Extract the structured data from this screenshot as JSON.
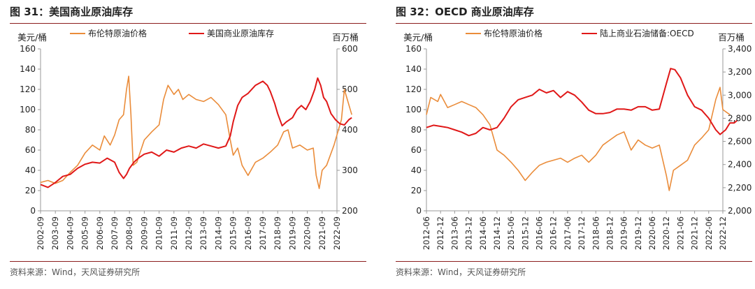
{
  "chart_data": [
    {
      "type": "line",
      "title": "图 31：美国商业原油库存",
      "source": "资料来源：Wind，天风证券研究所",
      "left_unit": "美元/桶",
      "right_unit": "百万桶",
      "ylim_left": [
        0,
        160
      ],
      "ylim_right": [
        200,
        600
      ],
      "yticks_left": [
        "0",
        "20",
        "40",
        "60",
        "80",
        "100",
        "120",
        "140",
        "160"
      ],
      "yticks_right": [
        "200",
        "300",
        "400",
        "500",
        "600"
      ],
      "categories": [
        "2002-09",
        "2003-09",
        "2004-09",
        "2005-09",
        "2006-09",
        "2007-09",
        "2008-09",
        "2009-09",
        "2010-09",
        "2011-09",
        "2012-09",
        "2013-09",
        "2014-09",
        "2015-09",
        "2016-09",
        "2017-09",
        "2018-09",
        "2019-09",
        "2020-09",
        "2021-09",
        "2022-09"
      ],
      "series": [
        {
          "name": "布伦特原油价格",
          "axis": "left",
          "color": "#ea8c3a",
          "values": [
            [
              0,
              28
            ],
            [
              0.5,
              30
            ],
            [
              1,
              27
            ],
            [
              1.5,
              30
            ],
            [
              2,
              38
            ],
            [
              2.5,
              45
            ],
            [
              3,
              57
            ],
            [
              3.5,
              65
            ],
            [
              4,
              60
            ],
            [
              4.3,
              74
            ],
            [
              4.7,
              65
            ],
            [
              5,
              75
            ],
            [
              5.3,
              90
            ],
            [
              5.6,
              95
            ],
            [
              5.8,
              120
            ],
            [
              5.95,
              133
            ],
            [
              6.1,
              95
            ],
            [
              6.25,
              45
            ],
            [
              6.5,
              48
            ],
            [
              7,
              70
            ],
            [
              7.5,
              78
            ],
            [
              8,
              85
            ],
            [
              8.3,
              110
            ],
            [
              8.6,
              124
            ],
            [
              9,
              115
            ],
            [
              9.3,
              120
            ],
            [
              9.6,
              110
            ],
            [
              10,
              115
            ],
            [
              10.5,
              110
            ],
            [
              11,
              108
            ],
            [
              11.5,
              112
            ],
            [
              12,
              105
            ],
            [
              12.5,
              95
            ],
            [
              12.8,
              70
            ],
            [
              13,
              55
            ],
            [
              13.3,
              62
            ],
            [
              13.6,
              45
            ],
            [
              14,
              35
            ],
            [
              14.5,
              48
            ],
            [
              15,
              52
            ],
            [
              15.5,
              58
            ],
            [
              16,
              65
            ],
            [
              16.4,
              78
            ],
            [
              16.7,
              80
            ],
            [
              17,
              62
            ],
            [
              17.5,
              65
            ],
            [
              18,
              60
            ],
            [
              18.4,
              62
            ],
            [
              18.6,
              35
            ],
            [
              18.8,
              22
            ],
            [
              19,
              40
            ],
            [
              19.3,
              45
            ],
            [
              19.8,
              65
            ],
            [
              20,
              75
            ],
            [
              20.3,
              90
            ],
            [
              20.5,
              120
            ],
            [
              20.7,
              110
            ],
            [
              21,
              95
            ]
          ]
        },
        {
          "name": "美国商业原油库存",
          "axis": "right",
          "color": "#e01818",
          "values": [
            [
              0,
              265
            ],
            [
              0.5,
              258
            ],
            [
              1,
              270
            ],
            [
              1.5,
              285
            ],
            [
              2,
              290
            ],
            [
              2.5,
              305
            ],
            [
              3,
              315
            ],
            [
              3.5,
              320
            ],
            [
              4,
              318
            ],
            [
              4.5,
              330
            ],
            [
              5,
              320
            ],
            [
              5.3,
              295
            ],
            [
              5.6,
              280
            ],
            [
              5.8,
              290
            ],
            [
              6,
              305
            ],
            [
              6.3,
              320
            ],
            [
              6.6,
              330
            ],
            [
              7,
              340
            ],
            [
              7.5,
              345
            ],
            [
              8,
              335
            ],
            [
              8.5,
              350
            ],
            [
              9,
              345
            ],
            [
              9.5,
              355
            ],
            [
              10,
              360
            ],
            [
              10.5,
              355
            ],
            [
              11,
              365
            ],
            [
              11.5,
              360
            ],
            [
              12,
              355
            ],
            [
              12.5,
              360
            ],
            [
              12.8,
              385
            ],
            [
              13,
              420
            ],
            [
              13.3,
              460
            ],
            [
              13.6,
              480
            ],
            [
              14,
              490
            ],
            [
              14.5,
              510
            ],
            [
              15,
              520
            ],
            [
              15.3,
              510
            ],
            [
              15.5,
              495
            ],
            [
              15.8,
              465
            ],
            [
              16,
              440
            ],
            [
              16.3,
              410
            ],
            [
              16.6,
              420
            ],
            [
              17,
              430
            ],
            [
              17.3,
              450
            ],
            [
              17.6,
              460
            ],
            [
              17.9,
              450
            ],
            [
              18.2,
              470
            ],
            [
              18.5,
              500
            ],
            [
              18.7,
              528
            ],
            [
              18.9,
              510
            ],
            [
              19.1,
              480
            ],
            [
              19.3,
              470
            ],
            [
              19.6,
              440
            ],
            [
              19.9,
              425
            ],
            [
              20.2,
              415
            ],
            [
              20.5,
              412
            ],
            [
              20.8,
              425
            ],
            [
              21,
              430
            ]
          ]
        }
      ]
    },
    {
      "type": "line",
      "title": "图 32：OECD 商业原油库存",
      "source": "资料来源：Wind，天风证券研究所",
      "left_unit": "美元/桶",
      "right_unit": "百万桶",
      "ylim_left": [
        0,
        160
      ],
      "ylim_right": [
        2000,
        3400
      ],
      "yticks_left": [
        "0",
        "20",
        "40",
        "60",
        "80",
        "100",
        "120",
        "140",
        "160"
      ],
      "yticks_right": [
        "2,000",
        "2,200",
        "2,400",
        "2,600",
        "2,800",
        "3,000",
        "3,200",
        "3,400"
      ],
      "categories": [
        "2012-06",
        "2012-12",
        "2013-06",
        "2013-12",
        "2014-06",
        "2014-12",
        "2015-06",
        "2015-12",
        "2016-06",
        "2016-12",
        "2017-06",
        "2017-12",
        "2018-06",
        "2018-12",
        "2019-06",
        "2019-12",
        "2020-06",
        "2020-12",
        "2021-06",
        "2021-12",
        "2022-06",
        "2022-12"
      ],
      "series": [
        {
          "name": "布伦特原油价格",
          "axis": "left",
          "color": "#ea8c3a",
          "values": [
            [
              0,
              95
            ],
            [
              0.3,
              112
            ],
            [
              0.8,
              108
            ],
            [
              1,
              115
            ],
            [
              1.5,
              102
            ],
            [
              2,
              105
            ],
            [
              2.5,
              108
            ],
            [
              3,
              105
            ],
            [
              3.5,
              102
            ],
            [
              4,
              95
            ],
            [
              4.5,
              85
            ],
            [
              5,
              60
            ],
            [
              5.5,
              55
            ],
            [
              6,
              48
            ],
            [
              6.5,
              40
            ],
            [
              7,
              30
            ],
            [
              7.5,
              38
            ],
            [
              8,
              45
            ],
            [
              8.5,
              48
            ],
            [
              9,
              50
            ],
            [
              9.5,
              52
            ],
            [
              10,
              48
            ],
            [
              10.5,
              52
            ],
            [
              11,
              55
            ],
            [
              11.5,
              48
            ],
            [
              12,
              55
            ],
            [
              12.5,
              65
            ],
            [
              13,
              70
            ],
            [
              13.5,
              75
            ],
            [
              14,
              78
            ],
            [
              14.5,
              60
            ],
            [
              15,
              70
            ],
            [
              15.5,
              65
            ],
            [
              16,
              62
            ],
            [
              16.5,
              65
            ],
            [
              17,
              35
            ],
            [
              17.2,
              20
            ],
            [
              17.5,
              40
            ],
            [
              18,
              45
            ],
            [
              18.5,
              50
            ],
            [
              19,
              65
            ],
            [
              19.5,
              72
            ],
            [
              20,
              80
            ],
            [
              20.5,
              110
            ],
            [
              20.8,
              122
            ],
            [
              21,
              100
            ],
            [
              21.5,
              95
            ]
          ]
        },
        {
          "name": "陆上商业石油储备:OECD",
          "axis": "right",
          "color": "#e01818",
          "values": [
            [
              0,
              2720
            ],
            [
              0.5,
              2740
            ],
            [
              1,
              2730
            ],
            [
              1.5,
              2720
            ],
            [
              2,
              2700
            ],
            [
              2.5,
              2680
            ],
            [
              3,
              2650
            ],
            [
              3.5,
              2670
            ],
            [
              4,
              2720
            ],
            [
              4.5,
              2700
            ],
            [
              5,
              2720
            ],
            [
              5.5,
              2800
            ],
            [
              6,
              2900
            ],
            [
              6.5,
              2960
            ],
            [
              7,
              2980
            ],
            [
              7.5,
              3000
            ],
            [
              8,
              3050
            ],
            [
              8.5,
              3020
            ],
            [
              9,
              3040
            ],
            [
              9.5,
              2980
            ],
            [
              10,
              3030
            ],
            [
              10.5,
              3000
            ],
            [
              11,
              2940
            ],
            [
              11.5,
              2870
            ],
            [
              12,
              2840
            ],
            [
              12.5,
              2840
            ],
            [
              13,
              2850
            ],
            [
              13.5,
              2880
            ],
            [
              14,
              2880
            ],
            [
              14.5,
              2870
            ],
            [
              15,
              2900
            ],
            [
              15.5,
              2900
            ],
            [
              16,
              2870
            ],
            [
              16.5,
              2880
            ],
            [
              17,
              3100
            ],
            [
              17.3,
              3230
            ],
            [
              17.6,
              3220
            ],
            [
              18,
              3150
            ],
            [
              18.5,
              3000
            ],
            [
              19,
              2900
            ],
            [
              19.5,
              2870
            ],
            [
              20,
              2800
            ],
            [
              20.5,
              2700
            ],
            [
              20.8,
              2660
            ],
            [
              21.2,
              2700
            ],
            [
              21.5,
              2760
            ],
            [
              21.8,
              2760
            ],
            [
              22,
              2780
            ]
          ]
        }
      ]
    }
  ]
}
